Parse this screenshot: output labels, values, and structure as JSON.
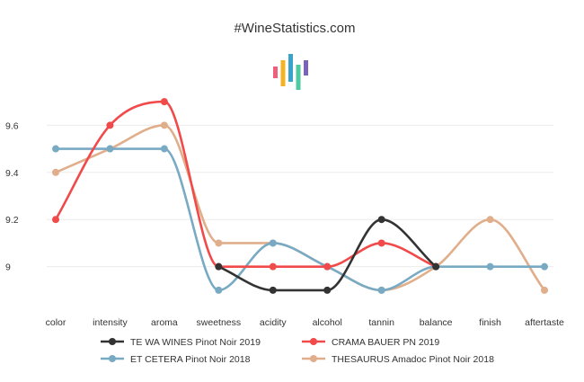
{
  "chart_data": {
    "type": "line",
    "title": "#WineStatistics.com",
    "categories": [
      "color",
      "intensity",
      "aroma",
      "sweetness",
      "acidity",
      "alcohol",
      "tannin",
      "balance",
      "finish",
      "aftertaste"
    ],
    "ylim": [
      8.85,
      9.75
    ],
    "yticks": [
      "9",
      "9.2",
      "9.4",
      "9.6"
    ],
    "grid": true,
    "legend_position": "bottom",
    "series": [
      {
        "name": "TE WA WINES Pinot Noir 2019",
        "color": "#333333",
        "values": [
          null,
          null,
          null,
          9.0,
          8.9,
          8.9,
          9.2,
          9.0,
          null,
          null
        ]
      },
      {
        "name": "CRAMA BAUER PN 2019",
        "color": "#f04a4a",
        "values": [
          9.2,
          9.6,
          9.7,
          9.0,
          9.0,
          9.0,
          9.1,
          9.0,
          null,
          null
        ]
      },
      {
        "name": "ET CETERA Pinot Noir 2018",
        "color": "#78aac4",
        "values": [
          9.5,
          9.5,
          9.5,
          8.9,
          9.1,
          9.0,
          8.9,
          9.0,
          9.0,
          9.0
        ]
      },
      {
        "name": "THESAURUS Amadoc Pinot Noir 2018",
        "color": "#e0ae8a",
        "values": [
          9.4,
          9.5,
          9.6,
          9.1,
          9.1,
          9.0,
          8.9,
          9.0,
          9.2,
          8.9
        ]
      }
    ]
  }
}
